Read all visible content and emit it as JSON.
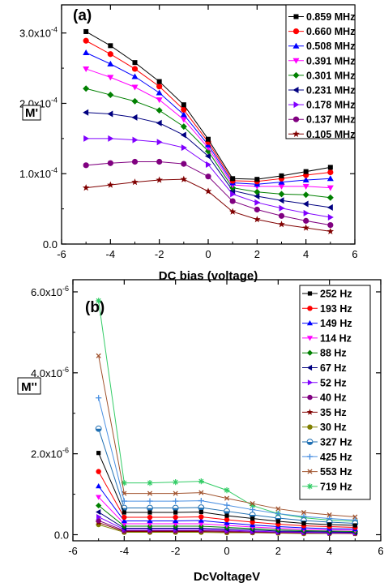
{
  "chart_data": [
    {
      "type": "line",
      "panel_label": "(a)",
      "xlabel": "DC bias (voltage)",
      "ylabel": "M'",
      "xlim": [
        -6,
        6
      ],
      "ylim": [
        0,
        0.00034
      ],
      "xticks": [
        -6,
        -4,
        -2,
        0,
        2,
        4,
        6
      ],
      "xtick_labels": [
        "-6",
        "-4",
        "-2",
        "0",
        "2",
        "4",
        "6"
      ],
      "yticks": [
        0,
        0.0001,
        0.0002,
        0.0003
      ],
      "ytick_labels": [
        "0.0",
        "1.0x10",
        "2.0x10",
        "3.0x10"
      ],
      "ytick_exps": [
        "",
        "-4",
        "-4",
        "-4"
      ],
      "legend_position": "top-right",
      "x": [
        -5,
        -4,
        -3,
        -2,
        -1,
        0,
        1,
        2,
        3,
        4,
        5
      ],
      "series": [
        {
          "name": "0.859 MHz",
          "color": "#000000",
          "marker": "square",
          "values": [
            0.000302,
            0.000282,
            0.000258,
            0.000231,
            0.000198,
            0.000149,
            9.3e-05,
            9.2e-05,
            9.7e-05,
            0.000103,
            0.000109
          ]
        },
        {
          "name": "0.660 MHz",
          "color": "#ff0000",
          "marker": "circle",
          "values": [
            0.000289,
            0.00027,
            0.000249,
            0.000224,
            0.000191,
            0.000145,
            9e-05,
            8.9e-05,
            9.3e-05,
            9.8e-05,
            0.000102
          ]
        },
        {
          "name": "0.508 MHz",
          "color": "#0000ff",
          "marker": "triangle-up",
          "values": [
            0.000272,
            0.000256,
            0.000238,
            0.000215,
            0.000184,
            0.000141,
            8.7e-05,
            8.5e-05,
            8.8e-05,
            9.1e-05,
            9.3e-05
          ]
        },
        {
          "name": "0.391 MHz",
          "color": "#ff00ff",
          "marker": "triangle-down",
          "values": [
            0.000249,
            0.000237,
            0.000223,
            0.000205,
            0.000177,
            0.000137,
            8.4e-05,
            8.2e-05,
            8.2e-05,
            8.2e-05,
            8e-05
          ]
        },
        {
          "name": "0.301 MHz",
          "color": "#008000",
          "marker": "diamond",
          "values": [
            0.000221,
            0.000212,
            0.000203,
            0.00019,
            0.000167,
            0.000132,
            8e-05,
            7.4e-05,
            7.1e-05,
            7e-05,
            6.6e-05
          ]
        },
        {
          "name": "0.231 MHz",
          "color": "#000080",
          "marker": "triangle-left",
          "values": [
            0.000187,
            0.000185,
            0.00018,
            0.000172,
            0.000155,
            0.000125,
            7.6e-05,
            6.8e-05,
            6.2e-05,
            5.7e-05,
            5.2e-05
          ]
        },
        {
          "name": "0.178 MHz",
          "color": "#8000ff",
          "marker": "triangle-right",
          "values": [
            0.00015,
            0.00015,
            0.000148,
            0.000145,
            0.000137,
            0.000113,
            7.1e-05,
            5.9e-05,
            5.1e-05,
            4.4e-05,
            3.8e-05
          ]
        },
        {
          "name": "0.137 MHz",
          "color": "#800080",
          "marker": "circle",
          "values": [
            0.000112,
            0.000115,
            0.000117,
            0.000117,
            0.000114,
            9.6e-05,
            6.1e-05,
            4.9e-05,
            4e-05,
            3.3e-05,
            2.7e-05
          ]
        },
        {
          "name": "0.105 MHz",
          "color": "#800000",
          "marker": "star",
          "values": [
            8e-05,
            8.4e-05,
            8.8e-05,
            9.1e-05,
            9.2e-05,
            7.5e-05,
            4.6e-05,
            3.5e-05,
            2.8e-05,
            2.3e-05,
            1.8e-05
          ]
        }
      ]
    },
    {
      "type": "line",
      "panel_label": "(b)",
      "xlabel": "DcVoltageV",
      "ylabel": "M''",
      "xlim": [
        -6,
        6
      ],
      "ylim": [
        -1.5e-07,
        6.3e-06
      ],
      "xticks": [
        -6,
        -4,
        -2,
        0,
        2,
        4,
        6
      ],
      "xtick_labels": [
        "-6",
        "-4",
        "-2",
        "0",
        "2",
        "4",
        "6"
      ],
      "yticks": [
        0,
        2e-06,
        4e-06,
        6e-06
      ],
      "ytick_labels": [
        "0.0",
        "2.0x10",
        "4.0x10",
        "6.0x10"
      ],
      "ytick_exps": [
        "",
        "-6",
        "-6",
        "-6"
      ],
      "legend_position": "top-right",
      "x": [
        -5,
        -4,
        -3,
        -2,
        -1,
        0,
        1,
        2,
        3,
        4,
        5
      ],
      "series": [
        {
          "name": "252 Hz",
          "color": "#000000",
          "marker": "square",
          "values": [
            2.02e-06,
            5.5e-07,
            5.5e-07,
            5.5e-07,
            5.6e-07,
            4.7e-07,
            4e-07,
            3.3e-07,
            2.8e-07,
            2.5e-07,
            2.3e-07
          ]
        },
        {
          "name": "193 Hz",
          "color": "#ff0000",
          "marker": "circle",
          "values": [
            1.56e-06,
            4.3e-07,
            4.3e-07,
            4.3e-07,
            4.4e-07,
            3.7e-07,
            3.1e-07,
            2.6e-07,
            2.2e-07,
            2e-07,
            1.8e-07
          ]
        },
        {
          "name": "149 Hz",
          "color": "#0000ff",
          "marker": "triangle-up",
          "values": [
            1.2e-06,
            3.4e-07,
            3.4e-07,
            3.4e-07,
            3.5e-07,
            2.9e-07,
            2.4e-07,
            2e-07,
            1.7e-07,
            1.5e-07,
            1.4e-07
          ]
        },
        {
          "name": "114 Hz",
          "color": "#ff00ff",
          "marker": "triangle-down",
          "values": [
            9.3e-07,
            2.7e-07,
            2.7e-07,
            2.7e-07,
            2.7e-07,
            2.3e-07,
            1.9e-07,
            1.6e-07,
            1.3e-07,
            1.2e-07,
            1.1e-07
          ]
        },
        {
          "name": "88 Hz",
          "color": "#008000",
          "marker": "diamond",
          "values": [
            7.2e-07,
            2.1e-07,
            2.1e-07,
            2.1e-07,
            2.1e-07,
            1.8e-07,
            1.5e-07,
            1.2e-07,
            1e-07,
            9e-08,
            8e-08
          ]
        },
        {
          "name": "67 Hz",
          "color": "#000080",
          "marker": "triangle-left",
          "values": [
            5.6e-07,
            1.6e-07,
            1.6e-07,
            1.6e-07,
            1.6e-07,
            1.4e-07,
            1.2e-07,
            9e-08,
            8e-08,
            7e-08,
            6e-08
          ]
        },
        {
          "name": "52 Hz",
          "color": "#8000ff",
          "marker": "triangle-right",
          "values": [
            4.4e-07,
            1.3e-07,
            1.3e-07,
            1.3e-07,
            1.3e-07,
            1.1e-07,
            9e-08,
            7e-08,
            6e-08,
            5e-08,
            5e-08
          ]
        },
        {
          "name": "40 Hz",
          "color": "#800080",
          "marker": "circle",
          "values": [
            3.5e-07,
            1e-07,
            1e-07,
            1e-07,
            1e-07,
            9e-08,
            7e-08,
            6e-08,
            5e-08,
            4e-08,
            4e-08
          ]
        },
        {
          "name": "35 Hz",
          "color": "#800000",
          "marker": "star",
          "values": [
            3e-07,
            8e-08,
            8e-08,
            8e-08,
            8e-08,
            7e-08,
            6e-08,
            5e-08,
            4e-08,
            4e-08,
            3e-08
          ]
        },
        {
          "name": "30 Hz",
          "color": "#808000",
          "marker": "circle",
          "values": [
            2.5e-07,
            6e-08,
            6e-08,
            6e-08,
            6e-08,
            5e-08,
            5e-08,
            4e-08,
            3e-08,
            3e-08,
            3e-08
          ]
        },
        {
          "name": "327 Hz",
          "color": "#1f6fb2",
          "marker": "circle-half",
          "values": [
            2.62e-06,
            6.6e-07,
            6.6e-07,
            6.6e-07,
            6.7e-07,
            5.8e-07,
            4.9e-07,
            4.1e-07,
            3.5e-07,
            3.1e-07,
            2.8e-07
          ]
        },
        {
          "name": "425 Hz",
          "color": "#4a90e2",
          "marker": "plus",
          "values": [
            3.38e-06,
            8.3e-07,
            8.3e-07,
            8.3e-07,
            8.4e-07,
            7.3e-07,
            6.2e-07,
            5.2e-07,
            4.5e-07,
            4e-07,
            3.6e-07
          ]
        },
        {
          "name": "553 Hz",
          "color": "#a0522d",
          "marker": "x",
          "values": [
            4.42e-06,
            1.02e-06,
            1.02e-06,
            1.02e-06,
            1.04e-06,
            9e-07,
            7.7e-07,
            6.4e-07,
            5.5e-07,
            4.9e-07,
            4.4e-07
          ]
        },
        {
          "name": "719 Hz",
          "color": "#33cc66",
          "marker": "asterisk",
          "values": [
            5.78e-06,
            1.28e-06,
            1.28e-06,
            1.3e-06,
            1.32e-06,
            1.1e-06,
            7.2e-07,
            5.2e-07,
            4.2e-07,
            3.6e-07,
            3.3e-07
          ]
        }
      ]
    }
  ]
}
